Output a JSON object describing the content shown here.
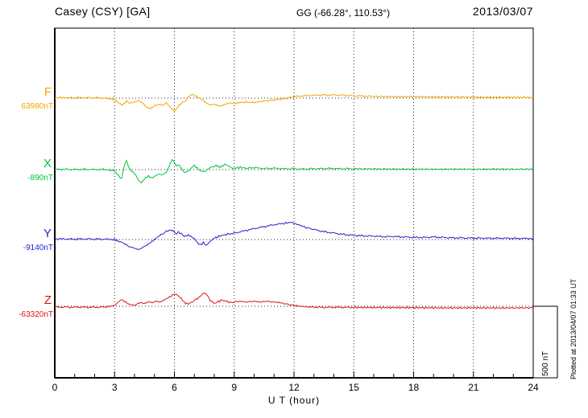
{
  "header": {
    "station": "Casey (CSY)  [GA]",
    "coords": "GG (-66.28°, 110.53°)",
    "date": "2013/03/07"
  },
  "xaxis": {
    "label": "U T (hour)",
    "ticks": [
      0,
      3,
      6,
      9,
      12,
      15,
      18,
      21,
      24
    ]
  },
  "scale_bar": {
    "label": "500 nT",
    "nT": 500
  },
  "footer_note": "Plotted at 2013/04/07 01:33 UT",
  "chart_data": {
    "type": "line",
    "title": "Casey (CSY) [GA] magnetogram 2013/03/07",
    "xlabel": "U T (hour)",
    "x_range": [
      0,
      24
    ],
    "x_ticks": [
      0,
      3,
      6,
      9,
      12,
      15,
      18,
      21,
      24
    ],
    "grid": "dotted vertical every 3 h, dotted horizontal at each channel baseline",
    "scale": {
      "bar_nT": 500
    },
    "series": [
      {
        "id": "F",
        "label": "F",
        "baseline_value": "63980nT",
        "color": "#F5A300",
        "points": [
          [
            0,
            3
          ],
          [
            0.5,
            3
          ],
          [
            1,
            2
          ],
          [
            1.5,
            3
          ],
          [
            2,
            2
          ],
          [
            2.5,
            0
          ],
          [
            2.8,
            -6
          ],
          [
            3,
            -12
          ],
          [
            3.2,
            -35
          ],
          [
            3.4,
            -50
          ],
          [
            3.6,
            -22
          ],
          [
            3.8,
            -35
          ],
          [
            4,
            -28
          ],
          [
            4.2,
            -18
          ],
          [
            4.4,
            -35
          ],
          [
            4.6,
            -65
          ],
          [
            4.8,
            -75
          ],
          [
            5,
            -55
          ],
          [
            5.2,
            -45
          ],
          [
            5.4,
            -50
          ],
          [
            5.6,
            -35
          ],
          [
            5.8,
            -65
          ],
          [
            6,
            -95
          ],
          [
            6.1,
            -75
          ],
          [
            6.25,
            -50
          ],
          [
            6.4,
            -32
          ],
          [
            6.55,
            -22
          ],
          [
            6.7,
            8
          ],
          [
            6.9,
            28
          ],
          [
            7,
            18
          ],
          [
            7.2,
            6
          ],
          [
            7.4,
            -12
          ],
          [
            7.6,
            -35
          ],
          [
            7.8,
            -50
          ],
          [
            8,
            -42
          ],
          [
            8.2,
            -55
          ],
          [
            8.4,
            -58
          ],
          [
            8.6,
            -42
          ],
          [
            8.8,
            -32
          ],
          [
            9,
            -38
          ],
          [
            9.3,
            -32
          ],
          [
            9.6,
            -28
          ],
          [
            10,
            -32
          ],
          [
            10.4,
            -22
          ],
          [
            10.8,
            -16
          ],
          [
            11.2,
            -10
          ],
          [
            11.6,
            -2
          ],
          [
            12,
            10
          ],
          [
            12.5,
            16
          ],
          [
            13,
            20
          ],
          [
            13.5,
            22
          ],
          [
            14,
            22
          ],
          [
            14.5,
            20
          ],
          [
            15,
            16
          ],
          [
            15.5,
            14
          ],
          [
            16,
            12
          ],
          [
            17,
            10
          ],
          [
            18,
            10
          ],
          [
            19,
            8
          ],
          [
            20,
            8
          ],
          [
            21,
            6
          ],
          [
            22,
            6
          ],
          [
            23,
            5
          ],
          [
            24,
            5
          ]
        ]
      },
      {
        "id": "X",
        "label": "X",
        "baseline_value": "-890nT",
        "color": "#00C43C",
        "points": [
          [
            0,
            2
          ],
          [
            0.5,
            2
          ],
          [
            1,
            1
          ],
          [
            1.5,
            2
          ],
          [
            2,
            1
          ],
          [
            2.5,
            1
          ],
          [
            2.8,
            -4
          ],
          [
            3,
            -8
          ],
          [
            3.2,
            -45
          ],
          [
            3.35,
            -65
          ],
          [
            3.5,
            35
          ],
          [
            3.6,
            65
          ],
          [
            3.7,
            22
          ],
          [
            3.85,
            -12
          ],
          [
            4,
            -25
          ],
          [
            4.2,
            -75
          ],
          [
            4.35,
            -95
          ],
          [
            4.5,
            -65
          ],
          [
            4.7,
            -45
          ],
          [
            4.85,
            -60
          ],
          [
            5,
            -48
          ],
          [
            5.2,
            -32
          ],
          [
            5.4,
            -38
          ],
          [
            5.6,
            -20
          ],
          [
            5.8,
            45
          ],
          [
            5.9,
            70
          ],
          [
            6,
            52
          ],
          [
            6.1,
            22
          ],
          [
            6.2,
            38
          ],
          [
            6.35,
            10
          ],
          [
            6.5,
            -22
          ],
          [
            6.7,
            -10
          ],
          [
            6.9,
            18
          ],
          [
            7,
            28
          ],
          [
            7.15,
            10
          ],
          [
            7.3,
            -6
          ],
          [
            7.5,
            -16
          ],
          [
            7.7,
            6
          ],
          [
            7.9,
            22
          ],
          [
            8.1,
            28
          ],
          [
            8.3,
            16
          ],
          [
            8.45,
            32
          ],
          [
            8.6,
            38
          ],
          [
            8.75,
            22
          ],
          [
            8.9,
            12
          ],
          [
            9,
            10
          ],
          [
            9.3,
            16
          ],
          [
            9.6,
            10
          ],
          [
            10,
            14
          ],
          [
            10.5,
            8
          ],
          [
            11,
            10
          ],
          [
            11.5,
            6
          ],
          [
            12,
            6
          ],
          [
            12.5,
            4
          ],
          [
            13,
            6
          ],
          [
            13.5,
            8
          ],
          [
            14,
            8
          ],
          [
            14.5,
            6
          ],
          [
            15,
            6
          ],
          [
            16,
            5
          ],
          [
            17,
            4
          ],
          [
            18,
            4
          ],
          [
            19,
            3
          ],
          [
            20,
            4
          ],
          [
            21,
            3
          ],
          [
            22,
            4
          ],
          [
            23,
            3
          ],
          [
            24,
            4
          ]
        ]
      },
      {
        "id": "Y",
        "label": "Y",
        "baseline_value": "-9140nT",
        "color": "#2222CC",
        "points": [
          [
            0,
            4
          ],
          [
            0.5,
            4
          ],
          [
            1,
            3
          ],
          [
            1.5,
            4
          ],
          [
            2,
            3
          ],
          [
            2.5,
            3
          ],
          [
            3,
            0
          ],
          [
            3.2,
            -12
          ],
          [
            3.4,
            -22
          ],
          [
            3.6,
            -38
          ],
          [
            3.8,
            -52
          ],
          [
            4,
            -62
          ],
          [
            4.2,
            -72
          ],
          [
            4.4,
            -58
          ],
          [
            4.6,
            -42
          ],
          [
            4.8,
            -22
          ],
          [
            5,
            0
          ],
          [
            5.2,
            22
          ],
          [
            5.4,
            42
          ],
          [
            5.6,
            58
          ],
          [
            5.8,
            68
          ],
          [
            6,
            58
          ],
          [
            6.1,
            38
          ],
          [
            6.2,
            52
          ],
          [
            6.35,
            42
          ],
          [
            6.5,
            22
          ],
          [
            6.7,
            32
          ],
          [
            6.9,
            16
          ],
          [
            7,
            6
          ],
          [
            7.15,
            -22
          ],
          [
            7.3,
            -38
          ],
          [
            7.45,
            -22
          ],
          [
            7.6,
            -42
          ],
          [
            7.8,
            -12
          ],
          [
            8,
            10
          ],
          [
            8.3,
            26
          ],
          [
            8.6,
            36
          ],
          [
            9,
            46
          ],
          [
            9.5,
            62
          ],
          [
            10,
            78
          ],
          [
            10.5,
            92
          ],
          [
            11,
            106
          ],
          [
            11.5,
            116
          ],
          [
            11.8,
            122
          ],
          [
            12,
            116
          ],
          [
            12.3,
            102
          ],
          [
            12.6,
            86
          ],
          [
            13,
            72
          ],
          [
            13.5,
            56
          ],
          [
            14,
            46
          ],
          [
            14.5,
            36
          ],
          [
            15,
            30
          ],
          [
            15.5,
            26
          ],
          [
            16,
            25
          ],
          [
            16.5,
            20
          ],
          [
            17,
            22
          ],
          [
            17.5,
            18
          ],
          [
            18,
            16
          ],
          [
            18.5,
            15
          ],
          [
            19,
            18
          ],
          [
            19.5,
            15
          ],
          [
            20,
            12
          ],
          [
            20.5,
            12
          ],
          [
            21,
            10
          ],
          [
            21.5,
            10
          ],
          [
            22,
            9
          ],
          [
            22.5,
            10
          ],
          [
            23,
            8
          ],
          [
            23.5,
            8
          ],
          [
            24,
            8
          ]
        ]
      },
      {
        "id": "Z",
        "label": "Z",
        "baseline_value": "-63320nT",
        "color": "#E01010",
        "points": [
          [
            0,
            -6
          ],
          [
            0.5,
            -6
          ],
          [
            1,
            -6
          ],
          [
            1.5,
            -7
          ],
          [
            2,
            -7
          ],
          [
            2.5,
            -6
          ],
          [
            2.8,
            0
          ],
          [
            3,
            6
          ],
          [
            3.2,
            32
          ],
          [
            3.4,
            48
          ],
          [
            3.5,
            36
          ],
          [
            3.7,
            16
          ],
          [
            3.9,
            6
          ],
          [
            4.1,
            16
          ],
          [
            4.3,
            26
          ],
          [
            4.5,
            20
          ],
          [
            4.7,
            32
          ],
          [
            4.9,
            26
          ],
          [
            5.1,
            36
          ],
          [
            5.3,
            30
          ],
          [
            5.5,
            46
          ],
          [
            5.7,
            62
          ],
          [
            5.9,
            78
          ],
          [
            6.1,
            88
          ],
          [
            6.2,
            72
          ],
          [
            6.35,
            56
          ],
          [
            6.5,
            26
          ],
          [
            6.7,
            16
          ],
          [
            6.9,
            32
          ],
          [
            7.1,
            48
          ],
          [
            7.3,
            72
          ],
          [
            7.5,
            98
          ],
          [
            7.65,
            80
          ],
          [
            7.8,
            42
          ],
          [
            8,
            22
          ],
          [
            8.2,
            32
          ],
          [
            8.4,
            46
          ],
          [
            8.6,
            36
          ],
          [
            8.8,
            26
          ],
          [
            9,
            32
          ],
          [
            9.3,
            36
          ],
          [
            9.6,
            30
          ],
          [
            10,
            36
          ],
          [
            10.3,
            30
          ],
          [
            10.6,
            36
          ],
          [
            11,
            30
          ],
          [
            11.3,
            26
          ],
          [
            11.6,
            16
          ],
          [
            12,
            6
          ],
          [
            12.3,
            0
          ],
          [
            12.6,
            -4
          ],
          [
            13,
            -6
          ],
          [
            13.5,
            -8
          ],
          [
            14,
            -7
          ],
          [
            14.5,
            -8
          ],
          [
            15,
            -8
          ],
          [
            16,
            -9
          ],
          [
            17,
            -10
          ],
          [
            18,
            -10
          ],
          [
            19,
            -11
          ],
          [
            20,
            -12
          ],
          [
            21,
            -11
          ],
          [
            22,
            -12
          ],
          [
            23,
            -12
          ],
          [
            24,
            -11
          ]
        ]
      }
    ]
  }
}
